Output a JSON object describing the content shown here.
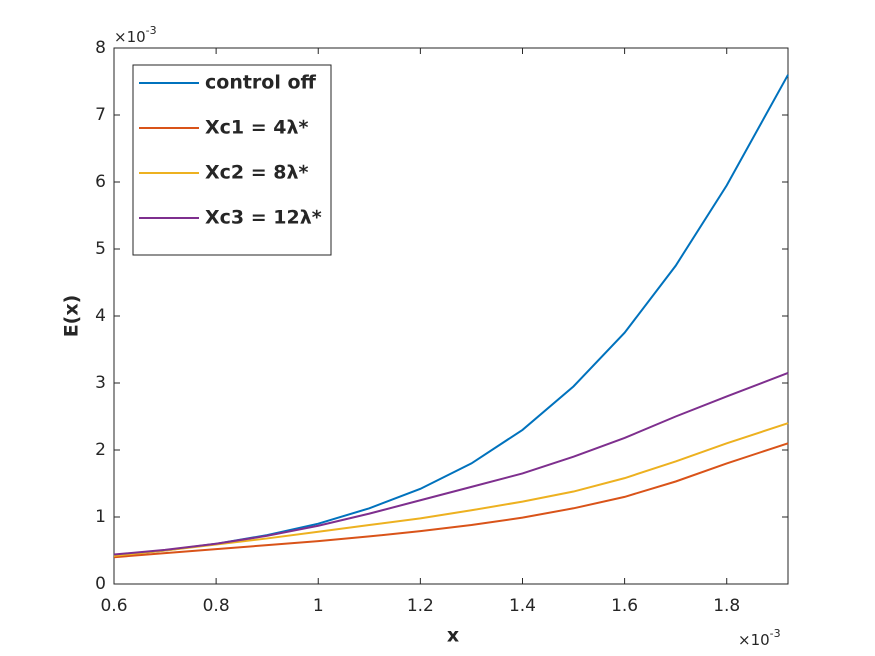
{
  "chart_data": {
    "type": "line",
    "x_label": "x",
    "y_label": "E(x)",
    "x_multiplier": {
      "base": "×10",
      "exponent": "-3"
    },
    "y_multiplier": {
      "base": "×10",
      "exponent": "-3"
    },
    "x": [
      0.6,
      0.7,
      0.8,
      0.9,
      1.0,
      1.1,
      1.2,
      1.3,
      1.4,
      1.5,
      1.6,
      1.7,
      1.8,
      1.92
    ],
    "xlim": [
      0.6,
      1.92
    ],
    "xticks": [
      0.6,
      0.8,
      1,
      1.2,
      1.4,
      1.6,
      1.8
    ],
    "ylim": [
      0,
      8
    ],
    "yticks": [
      0,
      1,
      2,
      3,
      4,
      5,
      6,
      7,
      8
    ],
    "legend": "upper left",
    "series": [
      {
        "name": "control off",
        "color": "#0072bd",
        "values": [
          0.42,
          0.5,
          0.6,
          0.73,
          0.9,
          1.13,
          1.42,
          1.8,
          2.3,
          2.95,
          3.75,
          4.75,
          5.95,
          7.6
        ]
      },
      {
        "name": "Xc1 = 4λ*",
        "color": "#d95319",
        "values": [
          0.4,
          0.46,
          0.52,
          0.58,
          0.64,
          0.71,
          0.79,
          0.88,
          0.99,
          1.13,
          1.3,
          1.53,
          1.8,
          2.1
        ]
      },
      {
        "name": "Xc2 = 8λ*",
        "color": "#edb120",
        "values": [
          0.42,
          0.5,
          0.59,
          0.68,
          0.78,
          0.88,
          0.98,
          1.1,
          1.23,
          1.38,
          1.58,
          1.83,
          2.1,
          2.4
        ]
      },
      {
        "name": "Xc3 = 12λ*",
        "color": "#7e2f8e",
        "values": [
          0.44,
          0.51,
          0.6,
          0.72,
          0.87,
          1.05,
          1.25,
          1.45,
          1.65,
          1.9,
          2.18,
          2.5,
          2.8,
          3.15
        ]
      }
    ]
  }
}
